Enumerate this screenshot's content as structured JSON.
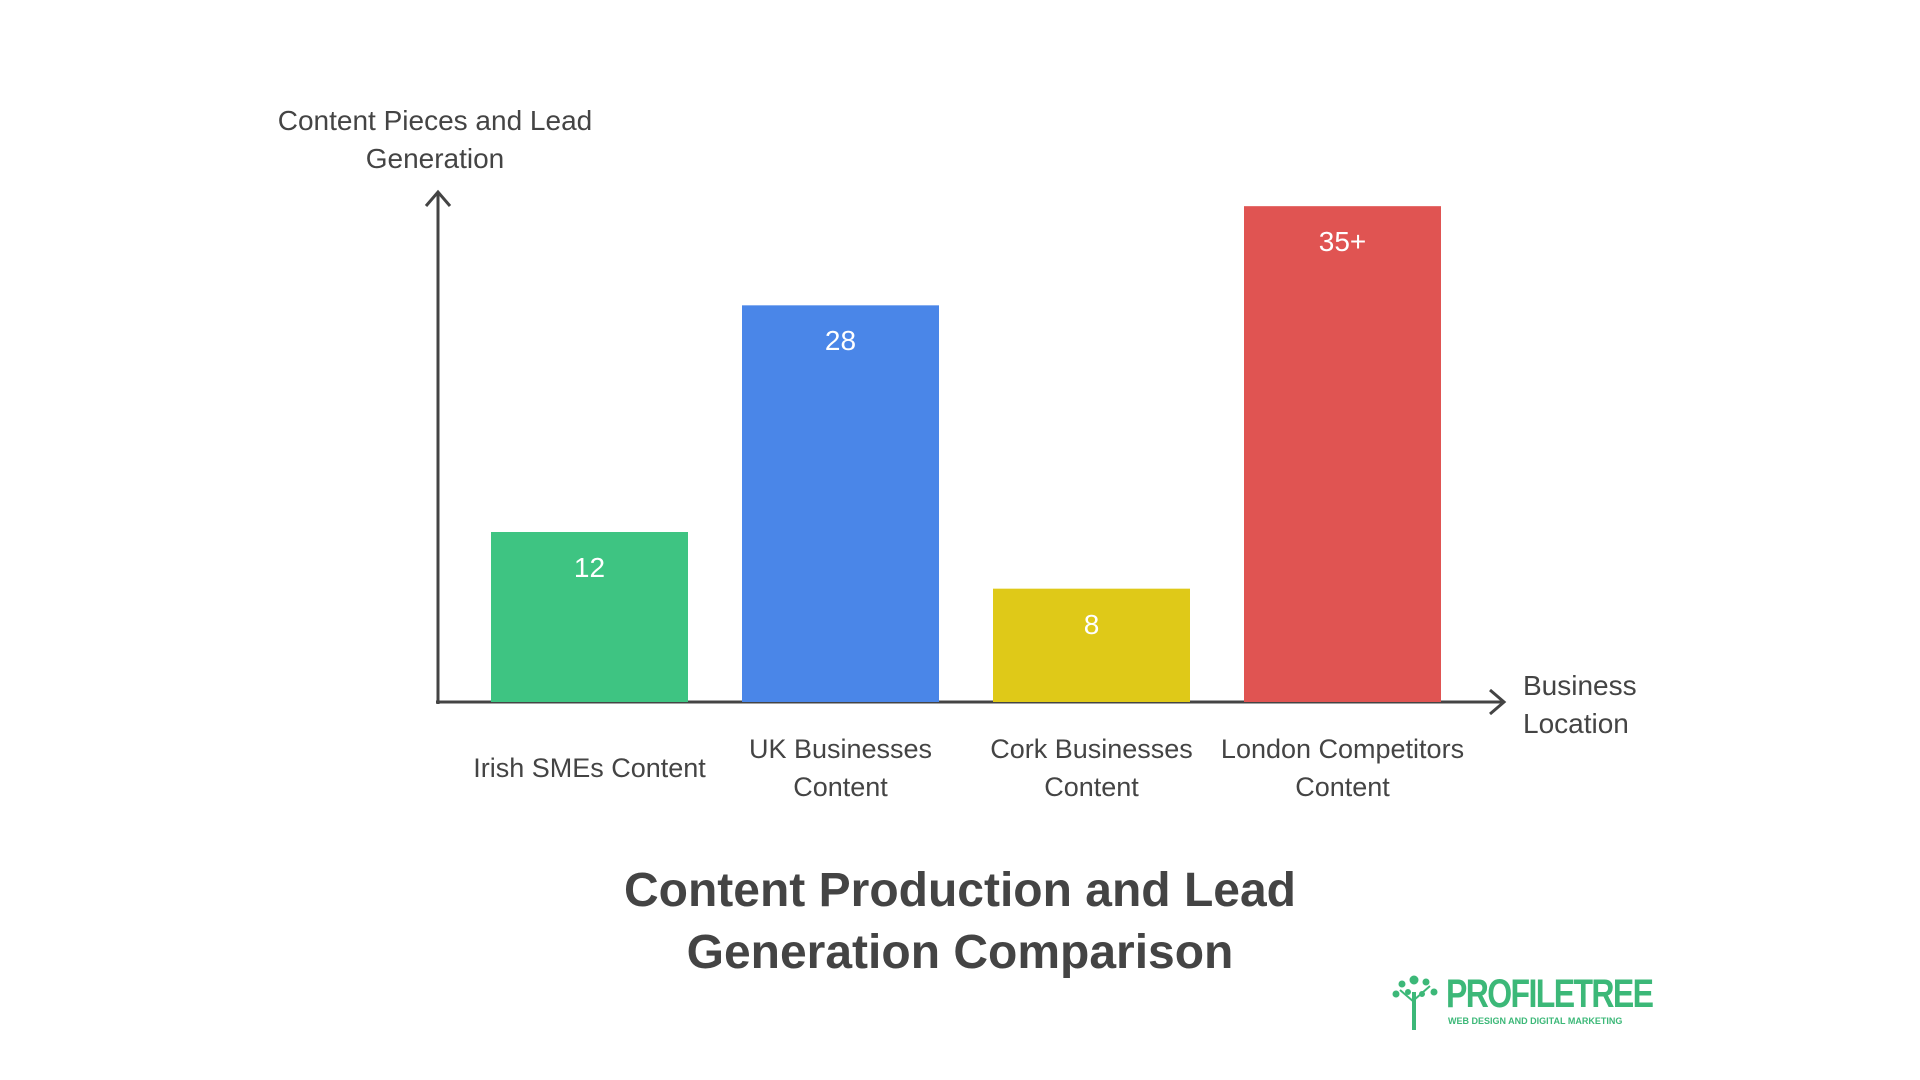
{
  "chart_data": {
    "type": "bar",
    "title": "Content Production and Lead Generation Comparison",
    "y_label": "Content Pieces and Lead Generation",
    "x_label": "Business Location",
    "categories": [
      "Irish SMEs Content",
      "UK Businesses Content",
      "Cork Businesses Content",
      "London Competitors Content"
    ],
    "values": [
      12,
      28,
      8,
      35
    ],
    "value_labels": [
      "12",
      "28",
      "8",
      "35+"
    ],
    "colors": [
      "#3ec482",
      "#4a86e8",
      "#dfc918",
      "#e05452"
    ],
    "ylim": [
      0,
      36
    ]
  },
  "logo": {
    "name": "PROFILETREE",
    "tagline": "WEB DESIGN AND DIGITAL MARKETING"
  }
}
